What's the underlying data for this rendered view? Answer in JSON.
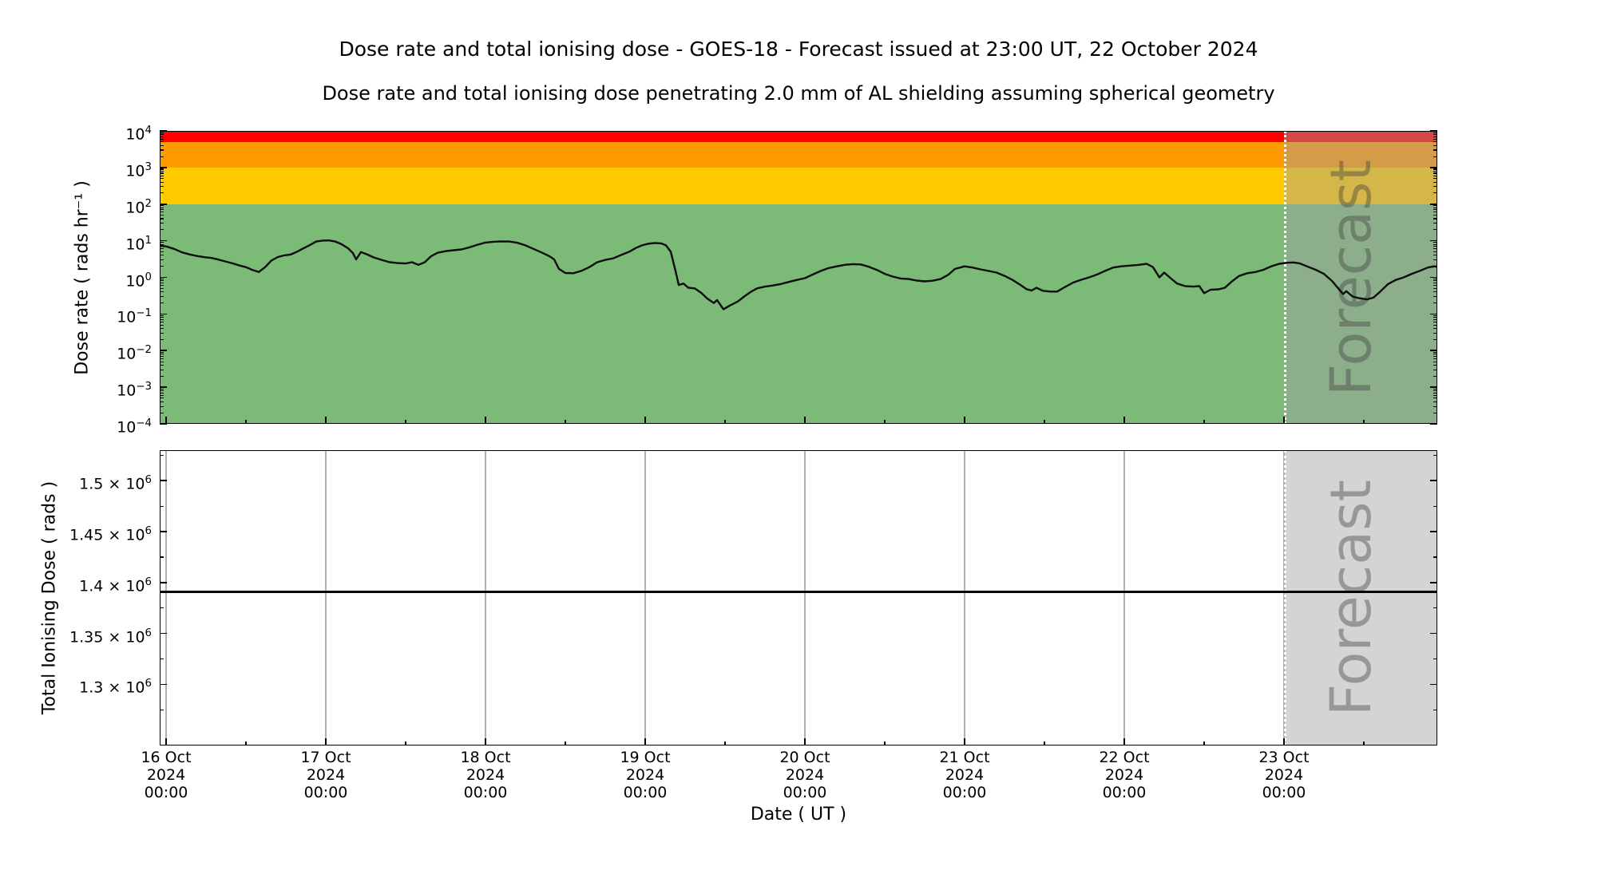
{
  "figure": {
    "title": "Dose rate and total ionising dose - GOES-18 - Forecast issued at 23:00 UT, 22 October 2024",
    "subtitle": "Dose rate and total ionising dose penetrating 2.0 mm of AL shielding assuming spherical geometry",
    "background_color": "#ffffff"
  },
  "top_panel": {
    "ylabel": "Dose rate ( rads hr⁻¹ )",
    "yticks": [
      {
        "base": "10",
        "exp": "4"
      },
      {
        "base": "10",
        "exp": "3"
      },
      {
        "base": "10",
        "exp": "2"
      },
      {
        "base": "10",
        "exp": "1"
      },
      {
        "base": "10",
        "exp": "0"
      },
      {
        "base": "10",
        "exp": "−1"
      },
      {
        "base": "10",
        "exp": "−2"
      },
      {
        "base": "10",
        "exp": "−3"
      },
      {
        "base": "10",
        "exp": "−4"
      }
    ],
    "bands": [
      {
        "name": "red",
        "color": "#ff0000",
        "range": [
          5000,
          10000
        ]
      },
      {
        "name": "orange",
        "color": "#ff9900",
        "range": [
          1000,
          5000
        ]
      },
      {
        "name": "yellow",
        "color": "#ffcb00",
        "range": [
          100,
          1000
        ]
      },
      {
        "name": "green",
        "color": "#7cba78",
        "range": [
          0.0001,
          100
        ]
      }
    ],
    "forecast_label": "Forecast"
  },
  "bottom_panel": {
    "ylabel": "Total Ionising Dose ( rads )",
    "yticks": [
      {
        "mant": "1.5",
        "exp": "6",
        "value": 1500000
      },
      {
        "mant": "1.45",
        "exp": "6",
        "value": 1450000
      },
      {
        "mant": "1.4",
        "exp": "6",
        "value": 1400000
      },
      {
        "mant": "1.35",
        "exp": "6",
        "value": 1350000
      },
      {
        "mant": "1.3",
        "exp": "6",
        "value": 1300000
      }
    ],
    "forecast_label": "Forecast"
  },
  "xaxis": {
    "label": "Date ( UT )",
    "ticks": [
      {
        "date": "16 Oct",
        "year": "2024",
        "time": "00:00"
      },
      {
        "date": "17 Oct",
        "year": "2024",
        "time": "00:00"
      },
      {
        "date": "18 Oct",
        "year": "2024",
        "time": "00:00"
      },
      {
        "date": "19 Oct",
        "year": "2024",
        "time": "00:00"
      },
      {
        "date": "20 Oct",
        "year": "2024",
        "time": "00:00"
      },
      {
        "date": "21 Oct",
        "year": "2024",
        "time": "00:00"
      },
      {
        "date": "22 Oct",
        "year": "2024",
        "time": "00:00"
      },
      {
        "date": "23 Oct",
        "year": "2024",
        "time": "00:00"
      }
    ]
  },
  "chart_data": [
    {
      "type": "line",
      "name": "dose_rate",
      "title": "Dose rate - GOES-18",
      "ylabel": "Dose rate ( rads hr-1 )",
      "yscale": "log",
      "ylim": [
        0.0001,
        10000
      ],
      "xlabel": "Date ( UT )",
      "x_unit": "days since 16 Oct 2024 00:00 UT",
      "xlim_days": [
        -0.042,
        7.958
      ],
      "grid": false,
      "threshold_bands": {
        "green_below": 100,
        "yellow": [
          100,
          1000
        ],
        "orange": [
          1000,
          5000
        ],
        "red": [
          5000,
          10000
        ]
      },
      "forecast_start_day": 7.0,
      "points": [
        [
          -0.04,
          7.3
        ],
        [
          0,
          7.0
        ],
        [
          0.05,
          6.0
        ],
        [
          0.1,
          4.8
        ],
        [
          0.15,
          4.2
        ],
        [
          0.2,
          3.8
        ],
        [
          0.25,
          3.5
        ],
        [
          0.28,
          3.4
        ],
        [
          0.31,
          3.2
        ],
        [
          0.36,
          2.8
        ],
        [
          0.42,
          2.4
        ],
        [
          0.46,
          2.1
        ],
        [
          0.5,
          1.9
        ],
        [
          0.54,
          1.6
        ],
        [
          0.58,
          1.4
        ],
        [
          0.62,
          1.9
        ],
        [
          0.66,
          2.9
        ],
        [
          0.7,
          3.6
        ],
        [
          0.74,
          4.0
        ],
        [
          0.78,
          4.2
        ],
        [
          0.82,
          5.0
        ],
        [
          0.86,
          6.2
        ],
        [
          0.9,
          7.6
        ],
        [
          0.94,
          9.5
        ],
        [
          0.98,
          10.1
        ],
        [
          1.02,
          10.2
        ],
        [
          1.06,
          9.5
        ],
        [
          1.1,
          8.0
        ],
        [
          1.14,
          6.2
        ],
        [
          1.17,
          4.6
        ],
        [
          1.19,
          3.1
        ],
        [
          1.22,
          4.9
        ],
        [
          1.26,
          4.2
        ],
        [
          1.3,
          3.5
        ],
        [
          1.35,
          3.0
        ],
        [
          1.4,
          2.6
        ],
        [
          1.45,
          2.45
        ],
        [
          1.5,
          2.4
        ],
        [
          1.54,
          2.6
        ],
        [
          1.58,
          2.2
        ],
        [
          1.62,
          2.6
        ],
        [
          1.66,
          3.8
        ],
        [
          1.7,
          4.7
        ],
        [
          1.75,
          5.2
        ],
        [
          1.8,
          5.5
        ],
        [
          1.85,
          5.8
        ],
        [
          1.9,
          6.6
        ],
        [
          1.95,
          7.8
        ],
        [
          2.0,
          8.9
        ],
        [
          2.05,
          9.4
        ],
        [
          2.1,
          9.6
        ],
        [
          2.15,
          9.5
        ],
        [
          2.2,
          8.8
        ],
        [
          2.25,
          7.5
        ],
        [
          2.3,
          6.0
        ],
        [
          2.35,
          4.8
        ],
        [
          2.4,
          3.8
        ],
        [
          2.43,
          3.1
        ],
        [
          2.46,
          1.7
        ],
        [
          2.5,
          1.32
        ],
        [
          2.55,
          1.3
        ],
        [
          2.6,
          1.5
        ],
        [
          2.65,
          1.9
        ],
        [
          2.7,
          2.6
        ],
        [
          2.75,
          3.0
        ],
        [
          2.8,
          3.3
        ],
        [
          2.85,
          4.1
        ],
        [
          2.9,
          5.0
        ],
        [
          2.94,
          6.3
        ],
        [
          2.98,
          7.5
        ],
        [
          3.02,
          8.3
        ],
        [
          3.06,
          8.7
        ],
        [
          3.1,
          8.5
        ],
        [
          3.13,
          7.5
        ],
        [
          3.16,
          5.0
        ],
        [
          3.19,
          1.5
        ],
        [
          3.21,
          0.62
        ],
        [
          3.24,
          0.68
        ],
        [
          3.27,
          0.52
        ],
        [
          3.31,
          0.5
        ],
        [
          3.35,
          0.38
        ],
        [
          3.39,
          0.26
        ],
        [
          3.43,
          0.2
        ],
        [
          3.45,
          0.24
        ],
        [
          3.49,
          0.135
        ],
        [
          3.53,
          0.17
        ],
        [
          3.58,
          0.22
        ],
        [
          3.62,
          0.3
        ],
        [
          3.66,
          0.4
        ],
        [
          3.7,
          0.5
        ],
        [
          3.75,
          0.56
        ],
        [
          3.8,
          0.6
        ],
        [
          3.85,
          0.66
        ],
        [
          3.9,
          0.75
        ],
        [
          3.95,
          0.85
        ],
        [
          4.0,
          0.95
        ],
        [
          4.05,
          1.2
        ],
        [
          4.1,
          1.5
        ],
        [
          4.15,
          1.8
        ],
        [
          4.2,
          2.0
        ],
        [
          4.25,
          2.2
        ],
        [
          4.3,
          2.3
        ],
        [
          4.35,
          2.25
        ],
        [
          4.4,
          1.95
        ],
        [
          4.45,
          1.6
        ],
        [
          4.5,
          1.25
        ],
        [
          4.55,
          1.05
        ],
        [
          4.6,
          0.93
        ],
        [
          4.65,
          0.9
        ],
        [
          4.7,
          0.82
        ],
        [
          4.75,
          0.78
        ],
        [
          4.8,
          0.81
        ],
        [
          4.85,
          0.9
        ],
        [
          4.9,
          1.2
        ],
        [
          4.94,
          1.7
        ],
        [
          5.0,
          2.0
        ],
        [
          5.05,
          1.85
        ],
        [
          5.1,
          1.65
        ],
        [
          5.15,
          1.5
        ],
        [
          5.2,
          1.35
        ],
        [
          5.25,
          1.1
        ],
        [
          5.3,
          0.85
        ],
        [
          5.35,
          0.62
        ],
        [
          5.39,
          0.47
        ],
        [
          5.42,
          0.44
        ],
        [
          5.45,
          0.52
        ],
        [
          5.49,
          0.43
        ],
        [
          5.54,
          0.41
        ],
        [
          5.58,
          0.41
        ],
        [
          5.63,
          0.55
        ],
        [
          5.68,
          0.72
        ],
        [
          5.73,
          0.86
        ],
        [
          5.78,
          1.0
        ],
        [
          5.83,
          1.2
        ],
        [
          5.88,
          1.5
        ],
        [
          5.93,
          1.85
        ],
        [
          5.98,
          2.0
        ],
        [
          6.04,
          2.1
        ],
        [
          6.09,
          2.2
        ],
        [
          6.14,
          2.35
        ],
        [
          6.18,
          1.9
        ],
        [
          6.22,
          1.0
        ],
        [
          6.25,
          1.35
        ],
        [
          6.29,
          0.95
        ],
        [
          6.33,
          0.68
        ],
        [
          6.38,
          0.58
        ],
        [
          6.43,
          0.56
        ],
        [
          6.47,
          0.58
        ],
        [
          6.5,
          0.37
        ],
        [
          6.54,
          0.46
        ],
        [
          6.59,
          0.47
        ],
        [
          6.63,
          0.52
        ],
        [
          6.67,
          0.75
        ],
        [
          6.72,
          1.1
        ],
        [
          6.77,
          1.3
        ],
        [
          6.82,
          1.4
        ],
        [
          6.87,
          1.6
        ],
        [
          6.92,
          2.0
        ],
        [
          6.97,
          2.35
        ],
        [
          7.02,
          2.5
        ],
        [
          7.06,
          2.55
        ],
        [
          7.1,
          2.4
        ],
        [
          7.15,
          1.95
        ],
        [
          7.2,
          1.6
        ],
        [
          7.25,
          1.25
        ],
        [
          7.3,
          0.8
        ],
        [
          7.34,
          0.5
        ],
        [
          7.37,
          0.35
        ],
        [
          7.39,
          0.42
        ],
        [
          7.43,
          0.3
        ],
        [
          7.47,
          0.27
        ],
        [
          7.52,
          0.25
        ],
        [
          7.56,
          0.28
        ],
        [
          7.6,
          0.4
        ],
        [
          7.65,
          0.65
        ],
        [
          7.7,
          0.85
        ],
        [
          7.75,
          1.0
        ],
        [
          7.8,
          1.25
        ],
        [
          7.85,
          1.5
        ],
        [
          7.9,
          1.85
        ],
        [
          7.94,
          2.0
        ],
        [
          7.96,
          1.95
        ]
      ]
    },
    {
      "type": "line",
      "name": "total_ionising_dose",
      "title": "Total Ionising Dose - GOES-18",
      "ylabel": "Total Ionising Dose ( rads )",
      "yscale": "linear",
      "ylim": [
        1240000,
        1530000
      ],
      "grid": "vertical-days",
      "forecast_start_day": 7.0,
      "points": [
        [
          -0.04,
          1391000
        ],
        [
          7.96,
          1391000
        ]
      ]
    }
  ]
}
